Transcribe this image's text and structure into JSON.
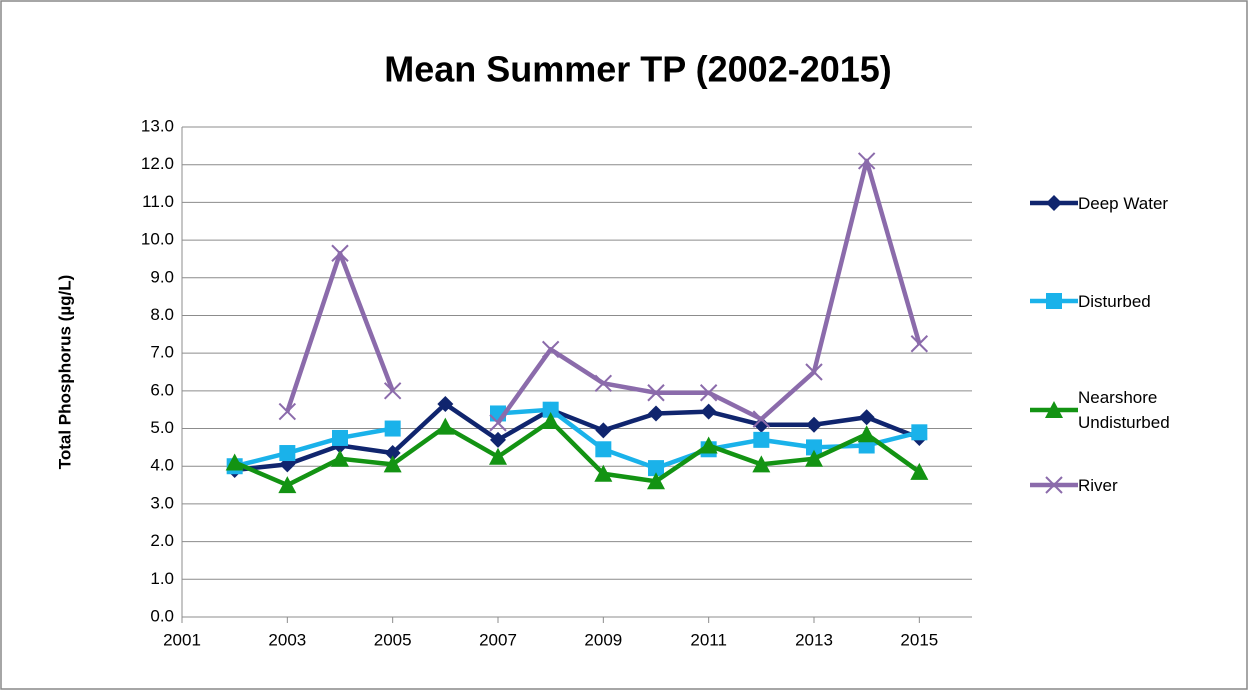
{
  "chart_data": {
    "type": "line",
    "title": "Mean Summer TP (2002-2015)",
    "y_label": "Total Phosphorus (µg/L)",
    "x": [
      2002,
      2003,
      2004,
      2005,
      2006,
      2007,
      2008,
      2009,
      2010,
      2011,
      2012,
      2013,
      2014,
      2015
    ],
    "xlim": [
      2001,
      2016
    ],
    "xticks": [
      2001,
      2003,
      2005,
      2007,
      2009,
      2011,
      2013,
      2015
    ],
    "ylim": [
      0,
      13
    ],
    "yticks": [
      {
        "value": 0,
        "label": "0.0"
      },
      {
        "value": 1,
        "label": "1.0"
      },
      {
        "value": 2,
        "label": "2.0"
      },
      {
        "value": 3,
        "label": "3.0"
      },
      {
        "value": 4,
        "label": "4.0"
      },
      {
        "value": 5,
        "label": "5.0"
      },
      {
        "value": 6,
        "label": "6.0"
      },
      {
        "value": 7,
        "label": "7.0"
      },
      {
        "value": 8,
        "label": "8.0"
      },
      {
        "value": 9,
        "label": "9.0"
      },
      {
        "value": 10,
        "label": "10.0"
      },
      {
        "value": 11,
        "label": "11.0"
      },
      {
        "value": 12,
        "label": "12.0"
      },
      {
        "value": 13,
        "label": "13.0"
      }
    ],
    "grid": true,
    "legend": "right",
    "series": [
      {
        "name": "Deep Water",
        "color": "#10256e",
        "marker": "diamond",
        "values": [
          3.9,
          4.05,
          4.55,
          4.35,
          5.65,
          4.7,
          5.5,
          4.95,
          5.4,
          5.45,
          5.1,
          5.1,
          5.3,
          4.75
        ]
      },
      {
        "name": "Disturbed",
        "color": "#1ab2ea",
        "marker": "square",
        "values": [
          4.0,
          4.35,
          4.75,
          5.0,
          null,
          5.4,
          5.5,
          4.45,
          3.95,
          4.45,
          4.7,
          4.5,
          4.55,
          4.9
        ]
      },
      {
        "name": "Nearshore Undisturbed",
        "color": "#139313",
        "marker": "triangle",
        "values": [
          4.1,
          3.5,
          4.2,
          4.05,
          5.05,
          4.25,
          5.2,
          3.8,
          3.6,
          4.55,
          4.05,
          4.2,
          4.85,
          3.85
        ]
      },
      {
        "name": "River",
        "color": "#8b6bab",
        "marker": "x",
        "values": [
          null,
          5.45,
          9.65,
          6.0,
          null,
          5.15,
          7.1,
          6.2,
          5.95,
          5.95,
          5.25,
          6.5,
          12.1,
          7.25
        ]
      }
    ]
  }
}
